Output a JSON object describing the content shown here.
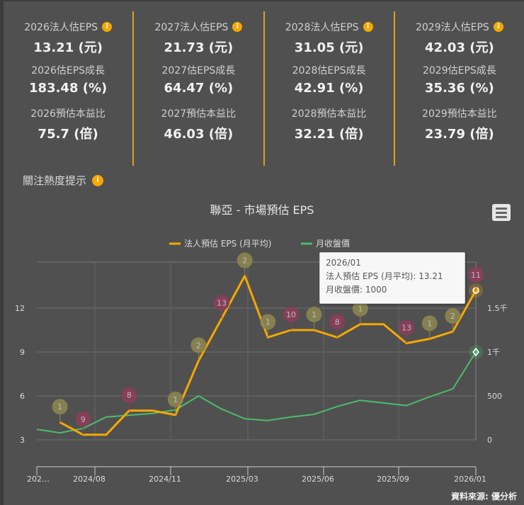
{
  "cards": [
    {
      "eps_label": "2026法人估EPS",
      "eps_value": "13.21 (元)",
      "growth_label": "2026估EPS成長",
      "growth_value": "183.48 (%)",
      "pe_label": "2026預估本益比",
      "pe_value": "75.7 (倍)"
    },
    {
      "eps_label": "2027法人估EPS",
      "eps_value": "21.73 (元)",
      "growth_label": "2027估EPS成長",
      "growth_value": "64.47 (%)",
      "pe_label": "2027預估本益比",
      "pe_value": "46.03 (倍)"
    },
    {
      "eps_label": "2028法人估EPS",
      "eps_value": "31.05 (元)",
      "growth_label": "2028估EPS成長",
      "growth_value": "42.91 (%)",
      "pe_label": "2028預估本益比",
      "pe_value": "32.21 (倍)"
    },
    {
      "eps_label": "2029法人估EPS",
      "eps_value": "42.03 (元)",
      "growth_label": "2029估EPS成長",
      "growth_value": "35.36 (%)",
      "pe_label": "2029預估本益比",
      "pe_value": "23.79 (倍)"
    }
  ],
  "info_icon": "i",
  "heat_label": "關注熱度提示",
  "source": "資料來源: 優分析",
  "tooltip": {
    "title": "2026/01",
    "line1": "法人預估 EPS (月平均): 13.21",
    "line2": "月收盤價: 1000"
  },
  "colors": {
    "eps": "#f5a800",
    "price": "#4cbb6c",
    "flag_olive": "#8c8550",
    "flag_pink": "#8c3d5a",
    "accent": "#d9a320"
  },
  "chart_data": {
    "type": "line",
    "title": "聯亞 - 市場預估 EPS",
    "months": [
      "2024/06",
      "2024/07",
      "2024/08",
      "2024/09",
      "2024/10",
      "2024/11",
      "2024/12",
      "2025/01",
      "2025/02",
      "2025/03",
      "2025/04",
      "2025/05",
      "2025/06",
      "2025/07",
      "2025/08",
      "2025/09",
      "2025/10",
      "2025/11",
      "2025/12",
      "2026/01"
    ],
    "x_tick_labels": [
      "202…",
      "2024/08",
      "2024/11",
      "2025/03",
      "2025/06",
      "2025/09",
      "2026/01"
    ],
    "y_left": {
      "ticks": [
        "3",
        "6",
        "9",
        "12"
      ],
      "range": [
        3,
        15
      ]
    },
    "y_right": {
      "ticks": [
        "0",
        "500",
        "1千",
        "1.5千"
      ],
      "range": [
        0,
        1500
      ]
    },
    "grid": true,
    "legend_position": "top",
    "series": [
      {
        "name": "法人預估 EPS (月平均)",
        "axis": "left",
        "values": [
          null,
          4.2,
          3.35,
          3.35,
          5.0,
          5.0,
          4.7,
          8.4,
          11.3,
          14.2,
          10.0,
          10.5,
          10.5,
          10.0,
          10.9,
          10.9,
          9.6,
          9.9,
          10.4,
          13.21
        ]
      },
      {
        "name": "月收盤價",
        "axis": "right",
        "values": [
          120,
          80,
          130,
          260,
          280,
          300,
          340,
          500,
          350,
          240,
          220,
          260,
          290,
          380,
          450,
          420,
          390,
          490,
          580,
          1000
        ]
      }
    ],
    "flags": [
      {
        "month": "2024/07",
        "count": "1",
        "kind": "olive"
      },
      {
        "month": "2024/08",
        "count": "9",
        "kind": "pink"
      },
      {
        "month": "2024/10",
        "count": "8",
        "kind": "pink"
      },
      {
        "month": "2024/12",
        "count": "1",
        "kind": "olive"
      },
      {
        "month": "2025/01",
        "count": "2",
        "kind": "olive"
      },
      {
        "month": "2025/02",
        "count": "13",
        "kind": "pink"
      },
      {
        "month": "2025/03",
        "count": "2",
        "kind": "olive"
      },
      {
        "month": "2025/04",
        "count": "1",
        "kind": "olive"
      },
      {
        "month": "2025/05",
        "count": "10",
        "kind": "pink"
      },
      {
        "month": "2025/06",
        "count": "1",
        "kind": "olive"
      },
      {
        "month": "2025/07",
        "count": "8",
        "kind": "pink"
      },
      {
        "month": "2025/08",
        "count": "1",
        "kind": "olive"
      },
      {
        "month": "2025/10",
        "count": "13",
        "kind": "pink"
      },
      {
        "month": "2025/11",
        "count": "1",
        "kind": "olive"
      },
      {
        "month": "2025/12",
        "count": "2",
        "kind": "olive"
      },
      {
        "month": "2026/01",
        "count": "11",
        "kind": "pink"
      }
    ]
  }
}
